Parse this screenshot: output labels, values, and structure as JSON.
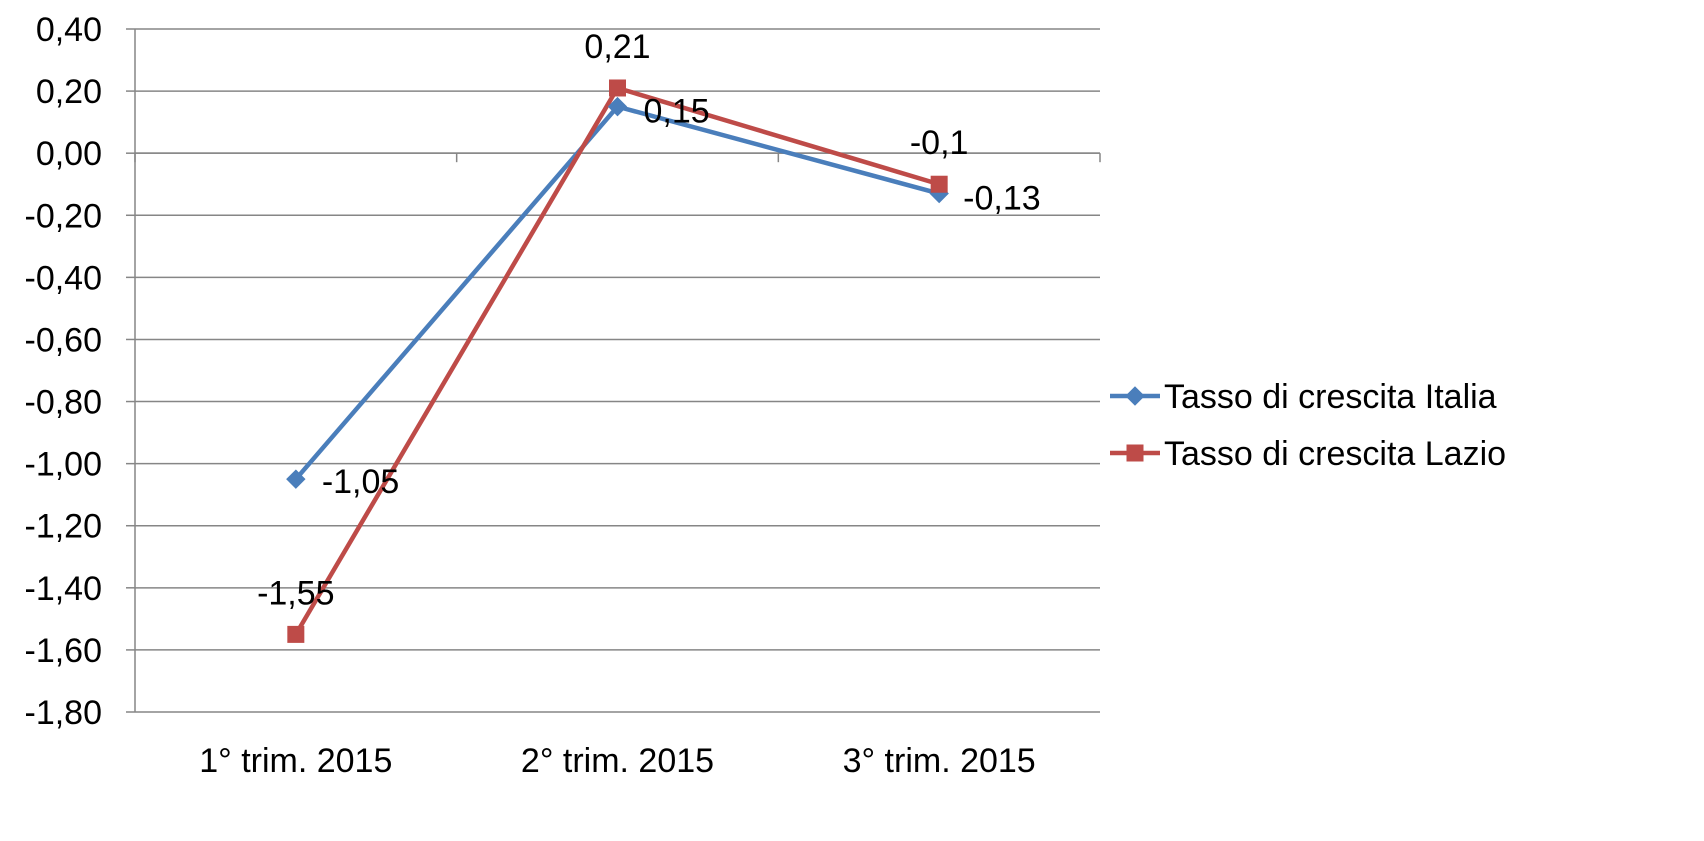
{
  "chart_data": {
    "type": "line",
    "categories": [
      "1° trim. 2015",
      "2° trim. 2015",
      "3° trim. 2015"
    ],
    "ylim": [
      -1.8,
      0.4
    ],
    "yticks": [
      0.4,
      0.2,
      0.0,
      -0.2,
      -0.4,
      -0.6,
      -0.8,
      -1.0,
      -1.2,
      -1.4,
      -1.6,
      -1.8
    ],
    "ytick_labels": [
      "0,40",
      "0,20",
      "0,00",
      "-0,20",
      "-0,40",
      "-0,60",
      "-0,80",
      "-1,00",
      "-1,20",
      "-1,40",
      "-1,60",
      "-1,80"
    ],
    "grid": true,
    "legend_position": "right",
    "series": [
      {
        "name": "Tasso di crescita Italia",
        "values": [
          -1.05,
          0.15,
          -0.13
        ],
        "data_labels": [
          "-1,05",
          "0,15",
          "-0,13"
        ],
        "color": "#4A7EBB",
        "marker": "diamond"
      },
      {
        "name": "Tasso di crescita Lazio",
        "values": [
          -1.55,
          0.21,
          -0.1
        ],
        "data_labels": [
          "-1,55",
          "0,21",
          "-0,1"
        ],
        "color": "#BE4B48",
        "marker": "square"
      }
    ]
  }
}
